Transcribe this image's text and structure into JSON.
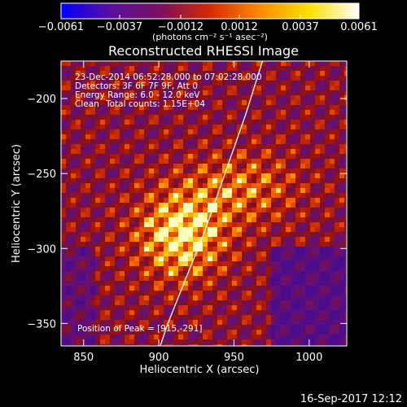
{
  "chart_data": {
    "type": "heatmap",
    "title": "Reconstructed RHESSI Image",
    "xlabel": "Heliocentric X (arcsec)",
    "ylabel": "Heliocentric Y (arcsec)",
    "xlim": [
      835,
      1025
    ],
    "ylim": [
      -365,
      -175
    ],
    "x_ticks": [
      850,
      900,
      950,
      1000
    ],
    "y_ticks": [
      -200,
      -250,
      -300,
      -350
    ],
    "x_tick_labels": [
      "850",
      "900",
      "950",
      "1000"
    ],
    "y_tick_labels": [
      "-200",
      "-250",
      "-300",
      "-350"
    ],
    "colorbar": {
      "range": [
        -0.0061,
        0.0061
      ],
      "ticks": [
        -0.0061,
        -0.0037,
        -0.0012,
        0.0012,
        0.0037,
        0.0061
      ],
      "tick_labels": [
        "-0.0061",
        "-0.0037",
        "-0.0012",
        "0.0012",
        "0.0037",
        "0.0061"
      ],
      "units_label": "(photons cm⁻² s⁻¹ asec⁻²)",
      "colormap": [
        "#0000ff",
        "#5a0fa0",
        "#7a1060",
        "#d42a00",
        "#ff8a00",
        "#ffe000",
        "#ffffff"
      ]
    },
    "annotations": {
      "time_range": "23-Dec-2014 06:52:28.000 to 07:02:28.000",
      "detectors": "Detectors: 3F 6F 7F 9F, Att 0",
      "energy": "Energy Range: 6.0 - 12.0 keV",
      "algorithm": "Clean",
      "total_counts": "Total counts: 1.15E+04",
      "peak": "Position of Peak = [915,-291]"
    },
    "peak_position": [
      915,
      -291
    ],
    "limb_curve": [
      [
        901,
        -365
      ],
      [
        906,
        -350
      ],
      [
        918,
        -320
      ],
      [
        930,
        -290
      ],
      [
        944,
        -250
      ],
      [
        958,
        -210
      ],
      [
        969,
        -175
      ]
    ],
    "timestamp": "16-Sep-2017 12:12"
  }
}
